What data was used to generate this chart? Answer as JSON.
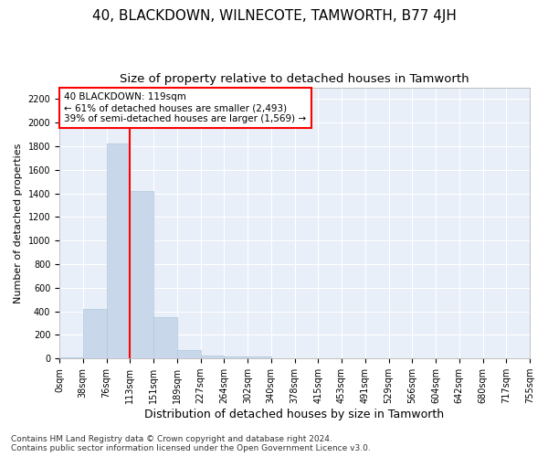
{
  "title": "40, BLACKDOWN, WILNECOTE, TAMWORTH, B77 4JH",
  "subtitle": "Size of property relative to detached houses in Tamworth",
  "xlabel": "Distribution of detached houses by size in Tamworth",
  "ylabel": "Number of detached properties",
  "bar_color": "#c8d8ea",
  "bar_edge_color": "#b0c8dc",
  "vline_color": "red",
  "vline_x": 3,
  "annotation_text": "40 BLACKDOWN: 119sqm\n← 61% of detached houses are smaller (2,493)\n39% of semi-detached houses are larger (1,569) →",
  "annotation_box_color": "white",
  "annotation_box_edge": "red",
  "bin_labels": [
    "0sqm",
    "38sqm",
    "76sqm",
    "113sqm",
    "151sqm",
    "189sqm",
    "227sqm",
    "264sqm",
    "302sqm",
    "340sqm",
    "378sqm",
    "415sqm",
    "453sqm",
    "491sqm",
    "529sqm",
    "566sqm",
    "604sqm",
    "642sqm",
    "680sqm",
    "717sqm",
    "755sqm"
  ],
  "bar_values": [
    10,
    420,
    1820,
    1420,
    350,
    70,
    25,
    15,
    20,
    0,
    0,
    0,
    0,
    0,
    0,
    0,
    0,
    0,
    0,
    0
  ],
  "ylim": [
    0,
    2300
  ],
  "yticks": [
    0,
    200,
    400,
    600,
    800,
    1000,
    1200,
    1400,
    1600,
    1800,
    2000,
    2200
  ],
  "background_color": "#e8eff8",
  "grid_color": "white",
  "footer_text": "Contains HM Land Registry data © Crown copyright and database right 2024.\nContains public sector information licensed under the Open Government Licence v3.0.",
  "title_fontsize": 11,
  "subtitle_fontsize": 9.5,
  "xlabel_fontsize": 9,
  "ylabel_fontsize": 8,
  "tick_fontsize": 7,
  "footer_fontsize": 6.5,
  "annotation_fontsize": 7.5
}
